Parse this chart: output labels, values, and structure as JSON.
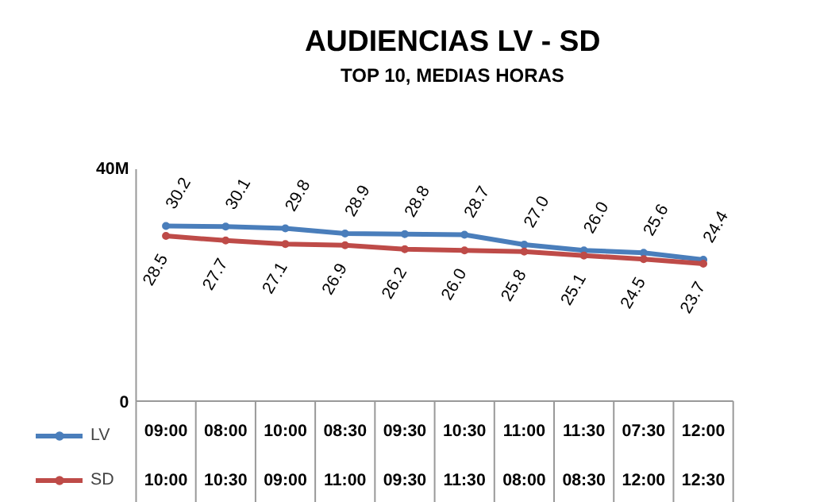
{
  "chart_data": {
    "type": "line",
    "title": "AUDIENCIAS LV - SD",
    "subtitle": "TOP 10, MEDIAS HORAS",
    "categories": [
      "09:00\n10:00",
      "08:00\n10:30",
      "10:00\n09:00",
      "08:30\n11:00",
      "09:30\n09:30",
      "10:30\n11:30",
      "11:00\n08:00",
      "11:30\n08:30",
      "07:30\n12:00",
      "12:00\n12:30"
    ],
    "series": [
      {
        "name": "LV",
        "color": "#4a7ebb",
        "values": [
          30.2,
          30.1,
          29.8,
          28.9,
          28.8,
          28.7,
          27.0,
          26.0,
          25.6,
          24.4
        ],
        "value_labels": [
          "30.2",
          "30.1",
          "29.8",
          "28.9",
          "28.8",
          "28.7",
          "27.0",
          "26.0",
          "25.6",
          "24.4"
        ]
      },
      {
        "name": "SD",
        "color": "#be4b48",
        "values": [
          28.5,
          27.7,
          27.1,
          26.9,
          26.2,
          26.0,
          25.8,
          25.1,
          24.5,
          23.7
        ],
        "value_labels": [
          "28.5",
          "27.7",
          "27.1",
          "26.9",
          "26.2",
          "26.0",
          "25.8",
          "25.1",
          "24.5",
          "23.7"
        ]
      }
    ],
    "ylim": [
      0,
      40
    ],
    "yticks": [
      0,
      {
        "value": 40,
        "label": "40M"
      }
    ],
    "marker": "circle",
    "legend": "bottom left"
  }
}
